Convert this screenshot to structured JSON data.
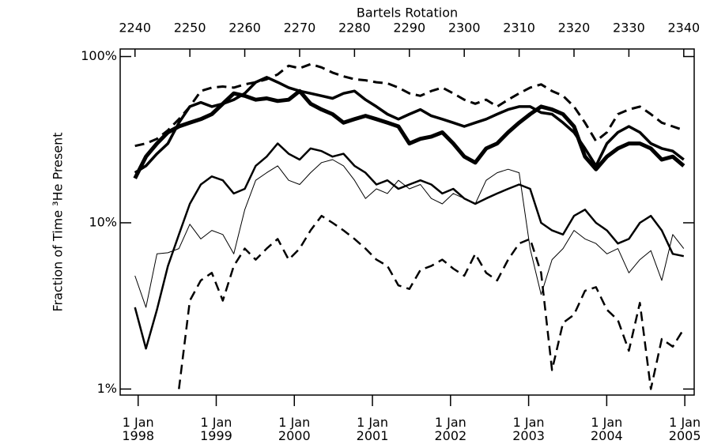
{
  "chart_data": {
    "type": "line",
    "xlabel": "Bartels Rotation",
    "ylabel": "Fraction of Time ³He Present",
    "log_y": true,
    "xlim": [
      2237.3,
      2341.9
    ],
    "xticks": [
      2240,
      2250,
      2260,
      2270,
      2280,
      2290,
      2300,
      2310,
      2320,
      2330,
      2340
    ],
    "x2lim": [
      1997.77,
      2005.12
    ],
    "x2ticks": [
      {
        "value": 1998,
        "label": "1 Jan 1998"
      },
      {
        "value": 1999,
        "label": "1 Jan 1999"
      },
      {
        "value": 2000,
        "label": "1 Jan 2000"
      },
      {
        "value": 2001,
        "label": "1 Jan 2001"
      },
      {
        "value": 2002,
        "label": "1 Jan 2002"
      },
      {
        "value": 2003,
        "label": "1 Jan 2003"
      },
      {
        "value": 2004,
        "label": "1 Jan 2004"
      },
      {
        "value": 2005,
        "label": "1 Jan 2005"
      }
    ],
    "ylim": [
      0.92,
      111
    ],
    "yticks": [
      {
        "value": 1,
        "label": "1%"
      },
      {
        "value": 10,
        "label": "10%"
      },
      {
        "value": 100,
        "label": "100%"
      }
    ],
    "x": [
      2240,
      2242,
      2244,
      2246,
      2248,
      2250,
      2252,
      2254,
      2256,
      2258,
      2260,
      2262,
      2264,
      2266,
      2268,
      2270,
      2272,
      2274,
      2276,
      2278,
      2280,
      2282,
      2284,
      2286,
      2288,
      2290,
      2292,
      2294,
      2296,
      2298,
      2300,
      2302,
      2304,
      2306,
      2308,
      2310,
      2312,
      2314,
      2316,
      2318,
      2320,
      2322,
      2324,
      2326,
      2328,
      2330,
      2332,
      2334,
      2336,
      2338,
      2340
    ],
    "series": [
      {
        "color": "#000000",
        "width": 3,
        "dash": true,
        "values": [
          29,
          30,
          32,
          36,
          42,
          50,
          62,
          65,
          66,
          65,
          68,
          70,
          73,
          78,
          88,
          85,
          90,
          86,
          80,
          76,
          73,
          72,
          70,
          69,
          65,
          60,
          58,
          62,
          65,
          60,
          55,
          52,
          55,
          50,
          55,
          60,
          65,
          68,
          62,
          58,
          50,
          40,
          31,
          35,
          45,
          48,
          50,
          45,
          40,
          38,
          36
        ]
      },
      {
        "color": "#000000",
        "width": 5,
        "dash": false,
        "values": [
          18.5,
          25,
          30,
          35,
          38,
          40,
          42,
          45,
          52,
          60,
          58,
          55,
          56,
          54,
          55,
          62,
          52,
          48,
          45,
          40,
          42,
          44,
          42,
          40,
          38,
          30,
          32,
          33,
          35,
          30,
          25,
          23,
          28,
          30,
          35,
          40,
          45,
          50,
          48,
          45,
          38,
          25,
          21,
          25,
          28,
          30,
          30,
          28,
          24,
          25,
          22
        ]
      },
      {
        "color": "#000000",
        "width": 3.5,
        "dash": false,
        "values": [
          20,
          22,
          26,
          30,
          40,
          50,
          53,
          50,
          52,
          55,
          60,
          70,
          75,
          70,
          65,
          62,
          60,
          58,
          56,
          60,
          62,
          55,
          50,
          45,
          42,
          45,
          48,
          44,
          42,
          40,
          38,
          40,
          42,
          45,
          48,
          50,
          50,
          46,
          45,
          40,
          35,
          28,
          22,
          30,
          35,
          38,
          35,
          30,
          28,
          27,
          24
        ]
      },
      {
        "color": "#000000",
        "width": 2.5,
        "dash": false,
        "values": [
          3.1,
          1.75,
          3.0,
          5.5,
          8.5,
          13,
          17,
          19,
          18,
          15,
          16,
          22,
          25,
          30,
          26,
          24,
          28,
          27,
          25,
          26,
          22,
          20,
          17,
          18,
          16,
          17,
          18,
          17,
          15,
          16,
          14,
          13,
          14,
          15,
          16,
          17,
          16,
          10,
          9,
          8.5,
          11,
          12,
          10,
          9,
          7.5,
          8,
          10,
          11,
          9,
          6.5,
          6.3
        ]
      },
      {
        "color": "#000000",
        "width": 1,
        "dash": false,
        "values": [
          4.8,
          3.1,
          6.5,
          6.6,
          7,
          9.8,
          8,
          9,
          8.5,
          6.5,
          12,
          18,
          20,
          22,
          18,
          17,
          20,
          23,
          24,
          22,
          18,
          14,
          16,
          15,
          18,
          16,
          17,
          14,
          13,
          15,
          14,
          13,
          18,
          20,
          21,
          20,
          7,
          3.7,
          6,
          7,
          9,
          8,
          7.5,
          6.5,
          7,
          5,
          6,
          6.8,
          4.5,
          8.5,
          7
        ]
      },
      {
        "color": "#000000",
        "width": 2.5,
        "dash": true,
        "values": [
          null,
          null,
          null,
          null,
          1.0,
          3.4,
          4.5,
          5.0,
          3.4,
          5.5,
          7,
          6,
          7,
          8,
          6,
          7,
          9,
          11,
          10,
          9,
          8,
          7,
          6,
          5.5,
          4.2,
          4.0,
          5.2,
          5.5,
          6,
          5.3,
          4.8,
          6.5,
          5,
          4.5,
          6,
          7.5,
          8,
          5,
          1.3,
          2.5,
          2.8,
          3.9,
          4.1,
          3.0,
          2.6,
          1.7,
          3.3,
          1.0,
          2.0,
          1.8,
          2.3
        ]
      }
    ]
  }
}
